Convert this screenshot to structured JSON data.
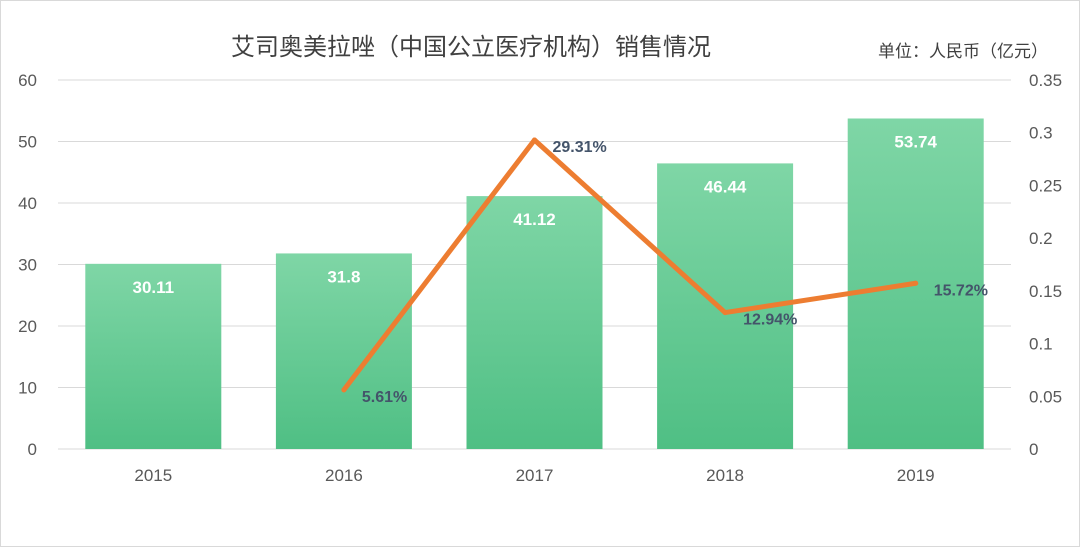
{
  "chart_data": {
    "type": "bar",
    "title": "艾司奥美拉唑（中国公立医疗机构）销售情况",
    "unit_label": "单位：人民币（亿元）",
    "categories": [
      "2015",
      "2016",
      "2017",
      "2018",
      "2019"
    ],
    "bar_series": {
      "values": [
        30.11,
        31.8,
        41.12,
        46.44,
        53.74
      ],
      "value_labels": [
        "30.11",
        "31.8",
        "41.12",
        "46.44",
        "53.74"
      ],
      "color": "#5ccf97"
    },
    "line_series": {
      "axis": "right",
      "values": [
        null,
        0.0561,
        0.2931,
        0.1294,
        0.1572
      ],
      "value_labels": [
        null,
        "5.61%",
        "29.31%",
        "12.94%",
        "15.72%"
      ],
      "color": "#ed7d31"
    },
    "y_left": {
      "min": 0,
      "max": 60,
      "ticks": [
        "0",
        "10",
        "20",
        "30",
        "40",
        "50",
        "60"
      ]
    },
    "y_right": {
      "min": 0,
      "max": 0.35,
      "ticks": [
        "0",
        "0.05",
        "0.1",
        "0.15",
        "0.2",
        "0.25",
        "0.3",
        "0.35"
      ]
    },
    "grid": true,
    "legend": "none"
  }
}
